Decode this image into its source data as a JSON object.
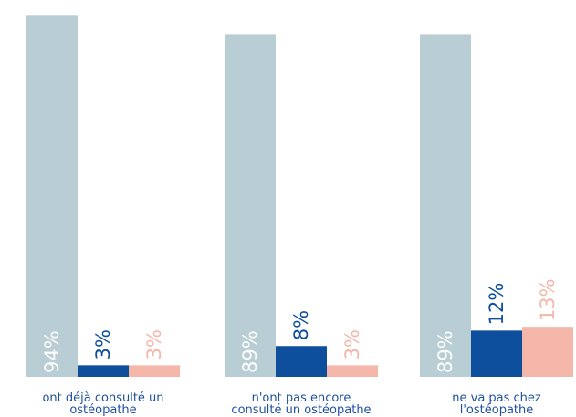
{
  "chart_data": {
    "type": "bar",
    "categories": [
      [
        "ont déjà consulté un",
        "ostéopathe"
      ],
      [
        "n'ont pas encore",
        "consulté un ostéopathe"
      ],
      [
        "ne va pas chez",
        "l'ostéopathe"
      ]
    ],
    "series": [
      {
        "color": "#b8cdd4",
        "label_color": "#ffffff",
        "values": [
          94,
          89,
          89
        ],
        "labels": [
          "94%",
          "89%",
          "89%"
        ]
      },
      {
        "color": "#0d4f9c",
        "label_color": "#0d4f9c",
        "values": [
          3,
          8,
          12
        ],
        "labels": [
          "3%",
          "8%",
          "12%"
        ]
      },
      {
        "color": "#f5b7aa",
        "label_color": "#f5b7aa",
        "values": [
          3,
          3,
          13
        ],
        "labels": [
          "3%",
          "3%",
          "13%"
        ]
      }
    ],
    "ylim": [
      0,
      100
    ],
    "xlabel": "",
    "ylabel": "",
    "grid": false,
    "legend": "none"
  }
}
